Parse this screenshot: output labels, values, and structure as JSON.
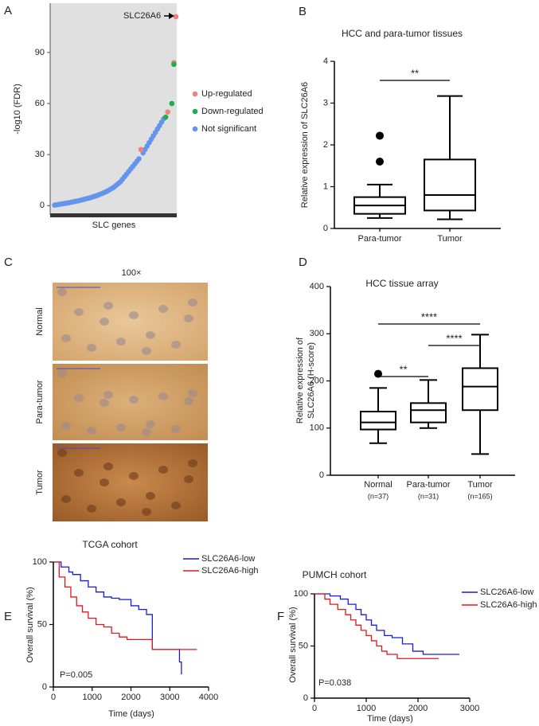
{
  "chart_data": [
    {
      "type": "scatter",
      "panel": "A",
      "y_label": "-log10 (FDR)",
      "x_label": "SLC genes",
      "annotation": "SLC26A6",
      "xlim": [
        0,
        60
      ],
      "ylim": [
        -5,
        118
      ],
      "yticks": [
        0,
        30,
        60,
        90
      ],
      "background": "#e0e0e0",
      "series": [
        {
          "name": "Up-regulated",
          "color": "#f0807a",
          "x": [
            43,
            56,
            59,
            60
          ],
          "values": [
            33,
            55,
            84,
            111
          ]
        },
        {
          "name": "Down-regulated",
          "color": "#1aae4c",
          "x": [
            55,
            58,
            59
          ],
          "values": [
            52,
            60,
            83
          ]
        },
        {
          "name": "Not significant",
          "color": "#6495ed",
          "x": [
            1,
            2,
            3,
            4,
            5,
            6,
            7,
            8,
            9,
            10,
            11,
            12,
            13,
            14,
            15,
            16,
            17,
            18,
            19,
            20,
            21,
            22,
            23,
            24,
            25,
            26,
            27,
            28,
            29,
            30,
            31,
            32,
            33,
            34,
            35,
            36,
            37,
            38,
            39,
            40,
            41,
            42,
            44,
            45,
            46,
            47,
            48,
            49,
            50,
            51,
            52,
            53,
            54
          ],
          "values": [
            0.3,
            0.5,
            0.7,
            0.9,
            1.1,
            1.3,
            1.5,
            1.7,
            2.0,
            2.2,
            2.5,
            2.7,
            3.0,
            3.3,
            3.6,
            3.9,
            4.2,
            4.5,
            4.9,
            5.3,
            5.7,
            6.1,
            6.6,
            7.1,
            7.6,
            8.2,
            8.8,
            9.5,
            10.2,
            11,
            12,
            13,
            14,
            15.5,
            17,
            18.5,
            20,
            21.5,
            23,
            24.5,
            26,
            27.5,
            31,
            33,
            35,
            37,
            39,
            41,
            43,
            45,
            47,
            49,
            51
          ]
        }
      ]
    },
    {
      "type": "box",
      "panel": "B",
      "title": "HCC and para-tumor tissues",
      "y_label": [
        "Relative expression of SLC26A6"
      ],
      "categories": [
        "Para-tumor",
        "Tumor"
      ],
      "ylim": [
        0,
        4
      ],
      "yticks": [
        0,
        1,
        2,
        3,
        4
      ],
      "boxes": [
        {
          "min": 0.25,
          "q1": 0.35,
          "median": 0.55,
          "q3": 0.75,
          "max": 1.05,
          "outliers": [
            1.6,
            2.22
          ]
        },
        {
          "min": 0.22,
          "q1": 0.43,
          "median": 0.8,
          "q3": 1.65,
          "max": 3.17,
          "outliers": []
        }
      ],
      "significance": [
        {
          "label": "**",
          "groups": [
            0,
            1
          ]
        }
      ]
    },
    {
      "type": "image",
      "panel": "C",
      "title": "100×",
      "rows": [
        "Normal",
        "Para-tumor",
        "Tumor"
      ]
    },
    {
      "type": "box",
      "panel": "D",
      "title": "HCC tissue array",
      "y_label": [
        "Relative expression of",
        "SLC26A6 (H-score)"
      ],
      "categories": [
        "Normal",
        "Para-tumor",
        "Tumor"
      ],
      "sample_sizes": [
        "(n=37)",
        "(n=31)",
        "(n=165)"
      ],
      "ylim": [
        0,
        400
      ],
      "yticks": [
        0,
        100,
        200,
        300,
        400
      ],
      "boxes": [
        {
          "min": 68,
          "q1": 97,
          "median": 112,
          "q3": 135,
          "max": 185,
          "outliers": [
            215
          ]
        },
        {
          "min": 100,
          "q1": 112,
          "median": 138,
          "q3": 153,
          "max": 202,
          "outliers": []
        },
        {
          "min": 45,
          "q1": 138,
          "median": 188,
          "q3": 227,
          "max": 298,
          "outliers": []
        }
      ],
      "significance": [
        {
          "label": "**",
          "groups": [
            0,
            1
          ]
        },
        {
          "label": "****",
          "groups": [
            1,
            2
          ]
        },
        {
          "label": "****",
          "groups": [
            0,
            2
          ]
        }
      ]
    },
    {
      "type": "line",
      "step": true,
      "panel": "E",
      "title": "TCGA cohort",
      "x_label": "Time (days)",
      "y_label": "Overall survival (%)",
      "annotation": "P=0.005",
      "xlim": [
        0,
        4000
      ],
      "xticks": [
        0,
        1000,
        2000,
        3000,
        4000
      ],
      "ylim": [
        0,
        100
      ],
      "yticks": [
        0,
        50,
        100
      ],
      "series": [
        {
          "name": "SLC26A6-low",
          "color": "#1a1adb",
          "x": [
            0,
            200,
            400,
            500,
            700,
            900,
            1100,
            1300,
            1500,
            1700,
            2000,
            2200,
            2400,
            2550,
            3200,
            3250,
            3300
          ],
          "values": [
            100,
            96,
            92,
            90,
            85,
            80,
            76,
            72,
            71,
            70,
            65,
            62,
            58,
            30,
            30,
            20,
            10
          ]
        },
        {
          "name": "SLC26A6-high",
          "color": "#e8141b",
          "x": [
            0,
            150,
            300,
            450,
            600,
            750,
            900,
            1100,
            1300,
            1500,
            1700,
            1900,
            2550,
            3700
          ],
          "values": [
            100,
            88,
            80,
            72,
            65,
            60,
            55,
            50,
            48,
            43,
            40,
            38,
            30,
            30
          ]
        }
      ]
    },
    {
      "type": "line",
      "step": true,
      "panel": "F",
      "title": "PUMCH cohort",
      "x_label": "Time (days)",
      "y_label": "Overall survival (%)",
      "annotation": "P=0.038",
      "xlim": [
        0,
        3000
      ],
      "xticks": [
        0,
        1000,
        2000,
        3000
      ],
      "ylim": [
        0,
        100
      ],
      "yticks": [
        0,
        50,
        100
      ],
      "series": [
        {
          "name": "SLC26A6-low",
          "color": "#1a1adb",
          "x": [
            0,
            300,
            500,
            650,
            800,
            900,
            1000,
            1100,
            1200,
            1350,
            1500,
            1700,
            1900,
            2100,
            2800
          ],
          "values": [
            100,
            98,
            95,
            90,
            85,
            80,
            75,
            70,
            65,
            60,
            58,
            52,
            45,
            42,
            42
          ]
        },
        {
          "name": "SLC26A6-high",
          "color": "#e8141b",
          "x": [
            0,
            200,
            300,
            450,
            600,
            700,
            800,
            900,
            1000,
            1100,
            1200,
            1300,
            1400,
            1600,
            2400
          ],
          "values": [
            100,
            95,
            90,
            85,
            80,
            75,
            70,
            65,
            60,
            55,
            50,
            45,
            42,
            38,
            38
          ]
        }
      ]
    }
  ]
}
